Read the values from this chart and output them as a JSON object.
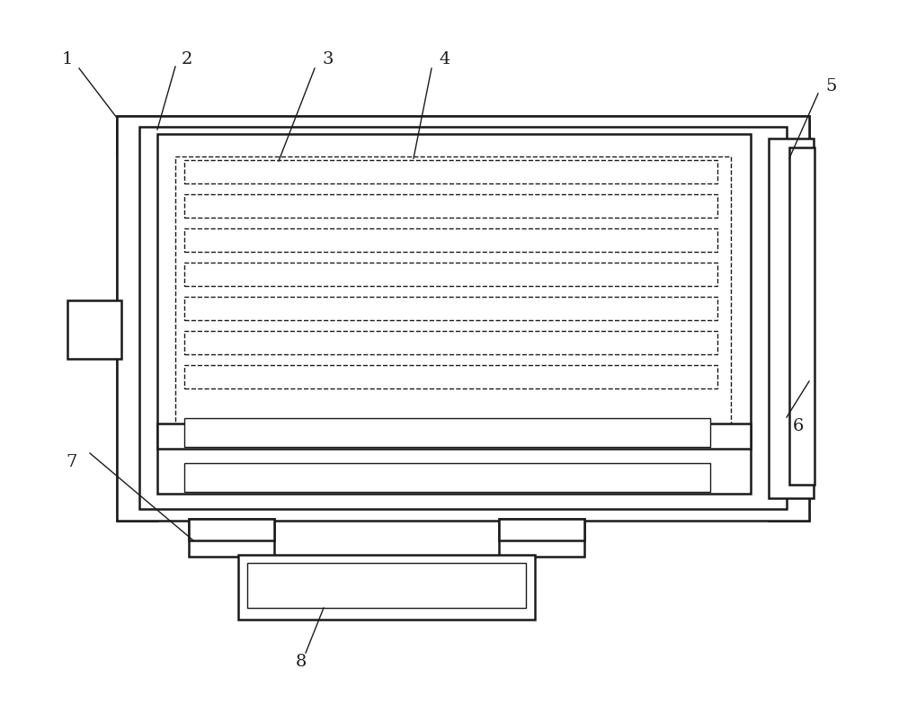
{
  "fig_width": 10.0,
  "fig_height": 7.94,
  "bg_color": "#ffffff",
  "line_color": "#1a1a1a",
  "lw": 1.8,
  "lw_thin": 1.0,
  "label_fontsize": 14
}
